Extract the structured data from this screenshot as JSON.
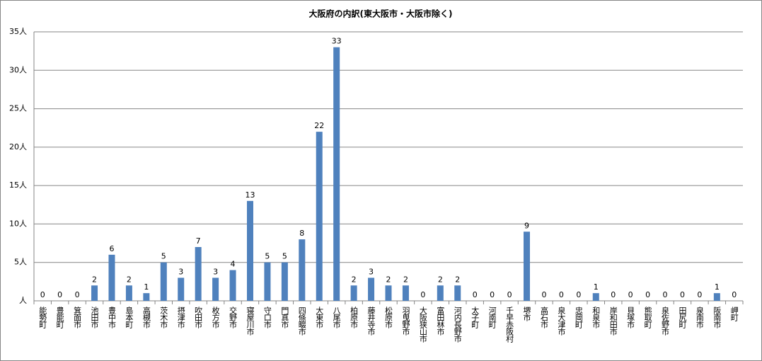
{
  "chart_data": {
    "type": "bar",
    "title": "大阪府の内訳(東大阪市・大阪市除く)",
    "categories": [
      "能勢町",
      "豊能町",
      "箕面市",
      "池田市",
      "豊中市",
      "島本町",
      "高槻市",
      "茨木市",
      "摂津市",
      "吹田市",
      "枚方市",
      "交野市",
      "寝屋川市",
      "守口市",
      "門真市",
      "四條畷市",
      "大東市",
      "八尾市",
      "柏原市",
      "藤井寺市",
      "松原市",
      "羽曳野市",
      "大阪狭山市",
      "富田林市",
      "河内長野市",
      "太子町",
      "河南町",
      "千早赤阪村",
      "堺市",
      "高石市",
      "泉大津市",
      "忠岡町",
      "和泉市",
      "岸和田市",
      "貝塚市",
      "熊取町",
      "泉佐野市",
      "田尻町",
      "泉南市",
      "阪南市",
      "岬町"
    ],
    "values": [
      0,
      0,
      0,
      2,
      6,
      2,
      1,
      5,
      3,
      7,
      3,
      4,
      13,
      5,
      5,
      8,
      22,
      33,
      2,
      3,
      2,
      2,
      0,
      2,
      2,
      0,
      0,
      0,
      9,
      0,
      0,
      0,
      1,
      0,
      0,
      0,
      0,
      0,
      0,
      1,
      0
    ],
    "color": "#4f81bd",
    "ylim": [
      0,
      35
    ],
    "yticks": [
      {
        "value": 0,
        "label": "人"
      },
      {
        "value": 5,
        "label": "5人"
      },
      {
        "value": 10,
        "label": "10人"
      },
      {
        "value": 15,
        "label": "15人"
      },
      {
        "value": 20,
        "label": "20人"
      },
      {
        "value": 25,
        "label": "25人"
      },
      {
        "value": 30,
        "label": "30人"
      },
      {
        "value": 35,
        "label": "35人"
      }
    ],
    "grid": true
  }
}
